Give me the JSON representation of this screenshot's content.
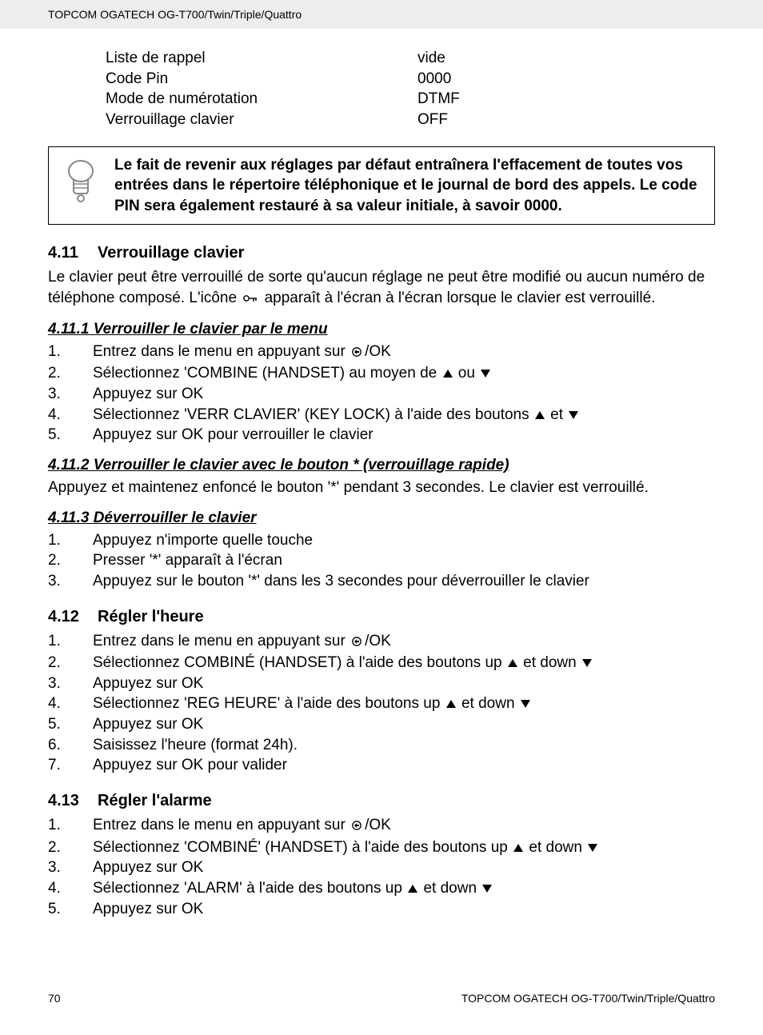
{
  "header": {
    "title": "TOPCOM OGATECH OG-T700/Twin/Triple/Quattro"
  },
  "settings": [
    {
      "label": "Liste de rappel",
      "value": "vide"
    },
    {
      "label": "Code Pin",
      "value": "0000"
    },
    {
      "label": "Mode de numérotation",
      "value": "DTMF"
    },
    {
      "label": "Verrouillage clavier",
      "value": "OFF"
    }
  ],
  "note": {
    "text": "Le fait de revenir aux réglages par défaut entraînera l'effacement de toutes vos entrées dans le répertoire téléphonique et le journal de bord des appels. Le code PIN sera également restauré à sa valeur initiale, à savoir 0000."
  },
  "s411": {
    "num": "4.11",
    "title": "Verrouillage clavier",
    "intro_a": "Le clavier peut être verrouillé de sorte qu'aucun réglage ne peut être modifié ou aucun numéro de téléphone composé. L'icône ",
    "intro_b": " apparaît à l'écran à l'écran lorsque le clavier est verrouillé.",
    "sub1": {
      "title": "4.11.1 Verrouiller le clavier par le menu",
      "steps": [
        {
          "pre": "Entrez dans le menu en appuyant sur ",
          "menu": true,
          "post": "/OK"
        },
        {
          "pre": "Sélectionnez 'COMBINE (HANDSET) au moyen de ",
          "up": true,
          "mid": " ou ",
          "down": true
        },
        {
          "pre": "Appuyez sur OK"
        },
        {
          "pre": "Sélectionnez 'VERR CLAVIER' (KEY LOCK) à l'aide des boutons ",
          "up": true,
          "mid": " et ",
          "down": true
        },
        {
          "pre": "Appuyez sur OK pour verrouiller le clavier"
        }
      ]
    },
    "sub2": {
      "title": "4.11.2 Verrouiller le clavier avec le bouton * (verrouillage rapide)",
      "text": "Appuyez et maintenez enfoncé le bouton '*' pendant 3 secondes.  Le clavier est verrouillé."
    },
    "sub3": {
      "title": "4.11.3 Déverrouiller le clavier",
      "steps": [
        {
          "pre": "Appuyez n'importe quelle touche"
        },
        {
          "pre": "Presser '*' apparaît à l'écran"
        },
        {
          "pre": "Appuyez sur le bouton '*' dans les 3 secondes pour déverrouiller le clavier"
        }
      ]
    }
  },
  "s412": {
    "num": "4.12",
    "title": "Régler l'heure",
    "steps": [
      {
        "pre": "Entrez dans le menu en appuyant sur ",
        "menu": true,
        "post": "/OK"
      },
      {
        "pre": "Sélectionnez COMBINÉ (HANDSET) à l'aide des boutons up ",
        "up": true,
        "mid": " et down ",
        "down": true
      },
      {
        "pre": "Appuyez sur OK"
      },
      {
        "pre": "Sélectionnez 'REG HEURE' à l'aide des boutons up ",
        "up": true,
        "mid": " et down ",
        "down": true
      },
      {
        "pre": "Appuyez sur OK"
      },
      {
        "pre": "Saisissez l'heure (format 24h)."
      },
      {
        "pre": "Appuyez sur OK pour valider"
      }
    ]
  },
  "s413": {
    "num": "4.13",
    "title": "Régler l'alarme",
    "steps": [
      {
        "pre": "Entrez dans le menu en appuyant sur ",
        "menu": true,
        "post": "/OK"
      },
      {
        "pre": "Sélectionnez 'COMBINÉ' (HANDSET) à l'aide des boutons up ",
        "up": true,
        "mid": " et down ",
        "down": true
      },
      {
        "pre": "Appuyez sur OK"
      },
      {
        "pre": "Sélectionnez 'ALARM' à l'aide des boutons up ",
        "up": true,
        "mid": " et down ",
        "down": true
      },
      {
        "pre": "Appuyez sur OK"
      }
    ]
  },
  "footer": {
    "page": "70",
    "right": "TOPCOM OGATECH OG-T700/Twin/Triple/Quattro"
  }
}
